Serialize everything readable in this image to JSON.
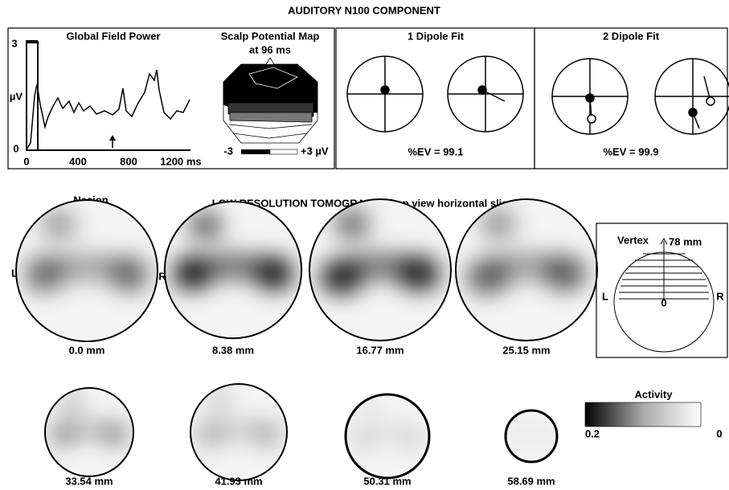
{
  "title": "AUDITORY N100 COMPONENT",
  "gfp": {
    "title": "Global Field Power",
    "y_labels": [
      "3",
      "µV",
      "0"
    ],
    "x_labels": [
      "0",
      "400",
      "800",
      "1200 ms"
    ]
  },
  "scalp_map": {
    "title": "Scalp Potential Map",
    "subtitle": "at 96 ms",
    "scale_min": "-3",
    "scale_max": "+3 µV"
  },
  "dipole1": {
    "title": "1 Dipole Fit",
    "ev": "%EV = 99.1"
  },
  "dipole2": {
    "title": "2 Dipole Fit",
    "ev": "%EV = 99.9"
  },
  "tomography": {
    "title": "LOW RESOLUTION TOMOGRAPHY (top view horizontal slices)",
    "nasion": "Nasion",
    "left": "L",
    "right": "R",
    "slices": [
      "0.0 mm",
      "8.38 mm",
      "16.77 mm",
      "25.15 mm",
      "33.54 mm",
      "41.93 mm",
      "50.31 mm",
      "58.69 mm"
    ]
  },
  "vertex": {
    "label": "Vertex",
    "height": "78 mm",
    "left": "L",
    "right": "R",
    "zero": "0"
  },
  "activity": {
    "title": "Activity",
    "min": "0.2",
    "max": "0"
  }
}
